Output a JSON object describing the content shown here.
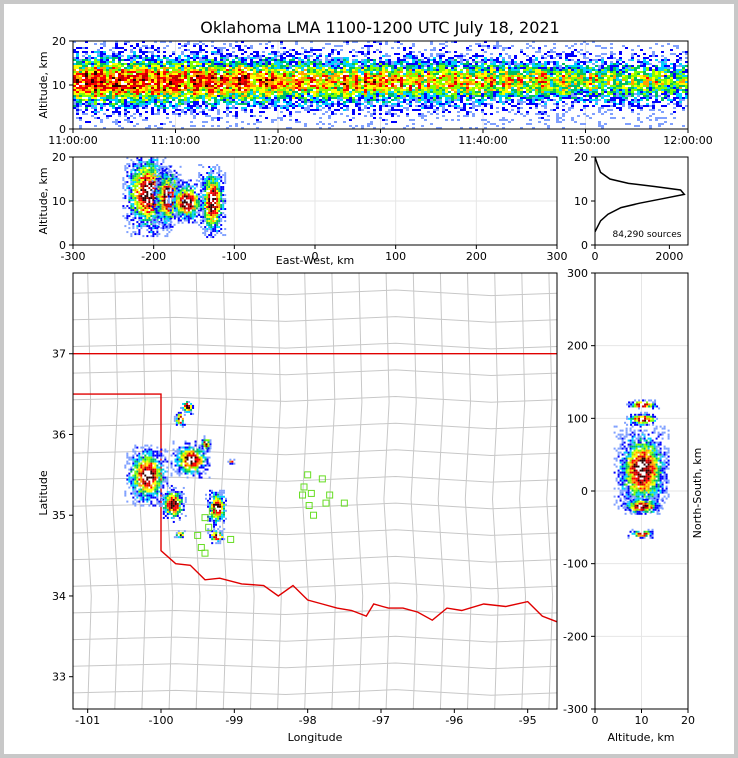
{
  "title": "Oklahoma LMA 1100-1200 UTC July 18, 2021",
  "colors": {
    "state_border": "#e00000",
    "county_lines": "#c8c8c8",
    "station_marker": "#66dd22",
    "histogram_line": "#000000",
    "density_scale": [
      "#e8f2ff",
      "#7fa0ff",
      "#0000ff",
      "#00cfff",
      "#00c060",
      "#80ff00",
      "#ffff00",
      "#ffa000",
      "#ff0000",
      "#c00000",
      "#2a0000",
      "#ffffff"
    ]
  },
  "chart_data": [
    {
      "id": "time-height",
      "type": "heatmap",
      "ylabel": "Altitude, km",
      "x_ticks": [
        "11:00:00",
        "11:10:00",
        "11:20:00",
        "11:30:00",
        "11:40:00",
        "11:50:00",
        "12:00:00"
      ],
      "xlim_minutes": [
        0,
        60
      ],
      "ylim": [
        0,
        20
      ],
      "y_ticks": [
        0,
        10,
        20
      ],
      "core_altitude_km": 11
    },
    {
      "id": "east-west-height",
      "type": "heatmap",
      "xlabel": "East-West, km",
      "ylabel": "Altitude, km",
      "xlim": [
        -300,
        300
      ],
      "ylim": [
        0,
        20
      ],
      "x_ticks": [
        -300,
        -200,
        -100,
        0,
        100,
        200,
        300
      ],
      "y_ticks": [
        0,
        10,
        20
      ],
      "cells": [
        {
          "x": -208,
          "alt": 12,
          "w": 22,
          "h": 14
        },
        {
          "x": -183,
          "alt": 11,
          "w": 14,
          "h": 10
        },
        {
          "x": -160,
          "alt": 10,
          "w": 16,
          "h": 7
        },
        {
          "x": -128,
          "alt": 10,
          "w": 12,
          "h": 12
        }
      ]
    },
    {
      "id": "altitude-histogram",
      "type": "line",
      "xlim": [
        0,
        2500
      ],
      "ylim": [
        0,
        20
      ],
      "x_ticks": [
        0,
        2000
      ],
      "y_ticks": [
        0,
        10,
        20
      ],
      "annotation": "84,290 sources",
      "points": [
        [
          0,
          3
        ],
        [
          60,
          4
        ],
        [
          150,
          5.5
        ],
        [
          350,
          7
        ],
        [
          700,
          8.5
        ],
        [
          1200,
          9.5
        ],
        [
          1800,
          10.5
        ],
        [
          2400,
          11.5
        ],
        [
          2300,
          12.5
        ],
        [
          1600,
          13.3
        ],
        [
          900,
          14
        ],
        [
          400,
          15
        ],
        [
          150,
          16.5
        ],
        [
          60,
          18.5
        ],
        [
          0,
          20
        ]
      ]
    },
    {
      "id": "plan-view",
      "type": "scatter",
      "xlabel": "Longitude",
      "ylabel": "Latitude",
      "xlim": [
        -101.2,
        -94.6
      ],
      "ylim": [
        32.6,
        38
      ],
      "x_ticks": [
        -101,
        -100,
        -99,
        -98,
        -97,
        -96,
        -95
      ],
      "y_ticks": [
        33,
        34,
        35,
        36,
        37
      ],
      "storms": [
        {
          "lon": -100.2,
          "lat": 35.5,
          "rx": 0.2,
          "ry": 0.25
        },
        {
          "lon": -99.85,
          "lat": 35.15,
          "rx": 0.12,
          "ry": 0.15
        },
        {
          "lon": -99.6,
          "lat": 35.7,
          "rx": 0.18,
          "ry": 0.15
        },
        {
          "lon": -99.25,
          "lat": 35.1,
          "rx": 0.1,
          "ry": 0.16
        },
        {
          "lon": -99.25,
          "lat": 34.75,
          "rx": 0.08,
          "ry": 0.06
        },
        {
          "lon": -99.65,
          "lat": 36.35,
          "rx": 0.06,
          "ry": 0.06
        },
        {
          "lon": -99.75,
          "lat": 36.2,
          "rx": 0.05,
          "ry": 0.07
        },
        {
          "lon": -99.4,
          "lat": 35.9,
          "rx": 0.05,
          "ry": 0.06
        },
        {
          "lon": -99.75,
          "lat": 34.77,
          "rx": 0.05,
          "ry": 0.03
        },
        {
          "lon": -99.05,
          "lat": 35.67,
          "rx": 0.03,
          "ry": 0.02
        }
      ],
      "stations": [
        [
          -98.0,
          35.5
        ],
        [
          -98.05,
          35.35
        ],
        [
          -98.07,
          35.25
        ],
        [
          -97.95,
          35.27
        ],
        [
          -97.8,
          35.45
        ],
        [
          -97.7,
          35.25
        ],
        [
          -97.75,
          35.15
        ],
        [
          -97.5,
          35.15
        ],
        [
          -97.98,
          35.12
        ],
        [
          -97.92,
          35.0
        ],
        [
          -99.4,
          34.97
        ],
        [
          -99.35,
          34.85
        ],
        [
          -99.45,
          34.6
        ],
        [
          -99.4,
          34.53
        ],
        [
          -99.5,
          34.75
        ],
        [
          -99.05,
          34.7
        ],
        [
          -99.3,
          35.05
        ]
      ]
    },
    {
      "id": "altitude-north-south",
      "type": "heatmap",
      "xlabel": "Altitude, km",
      "ylabel": "North-South, km",
      "xlim": [
        0,
        20
      ],
      "ylim": [
        -300,
        300
      ],
      "x_ticks": [
        0,
        10,
        20
      ],
      "y_ticks": [
        -300,
        -200,
        -100,
        0,
        100,
        200,
        300
      ],
      "cells": [
        {
          "ns": 30,
          "alt": 10,
          "w": 8,
          "h": 40
        },
        {
          "ns": -20,
          "alt": 10,
          "w": 6,
          "h": 8
        },
        {
          "ns": 100,
          "alt": 10,
          "w": 5,
          "h": 6
        },
        {
          "ns": 120,
          "alt": 10,
          "w": 5,
          "h": 4
        },
        {
          "ns": -58,
          "alt": 10,
          "w": 4,
          "h": 4
        }
      ]
    }
  ]
}
